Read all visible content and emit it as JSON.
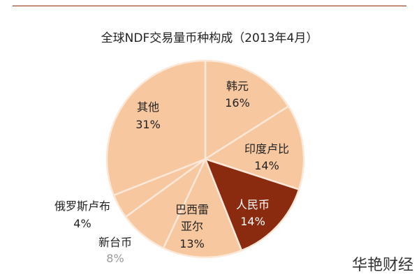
{
  "chart_data": {
    "type": "pie",
    "title": "全球NDF交易量币种构成（2013年4月）",
    "start": "12 o'clock",
    "direction": "clockwise",
    "slices": [
      {
        "label": "韩元",
        "value": 16,
        "value_label": "16%",
        "color": "#f7c79f",
        "label_color": "#222222"
      },
      {
        "label": "印度卢比",
        "value": 14,
        "value_label": "14%",
        "color": "#f7c79f",
        "label_color": "#222222"
      },
      {
        "label": "人民币",
        "value": 14,
        "value_label": "14%",
        "color": "#8a2b10",
        "label_color": "#ffffff"
      },
      {
        "label": "巴西雷亚尔",
        "value": 13,
        "value_label": "13%",
        "color": "#f7c79f",
        "label_color": "#222222"
      },
      {
        "label": "新台币",
        "value": 8,
        "value_label": "8%",
        "color": "#f7c79f",
        "label_color": "#222222",
        "value_color": "#999999"
      },
      {
        "label": "俄罗斯卢布",
        "value": 4,
        "value_label": "4%",
        "color": "#f7c79f",
        "label_color": "#222222"
      },
      {
        "label": "其他",
        "value": 31,
        "value_label": "31%",
        "color": "#f7c79f",
        "label_color": "#222222"
      }
    ],
    "separator_color": "#fbe8d8"
  },
  "watermark": "华艳财经"
}
